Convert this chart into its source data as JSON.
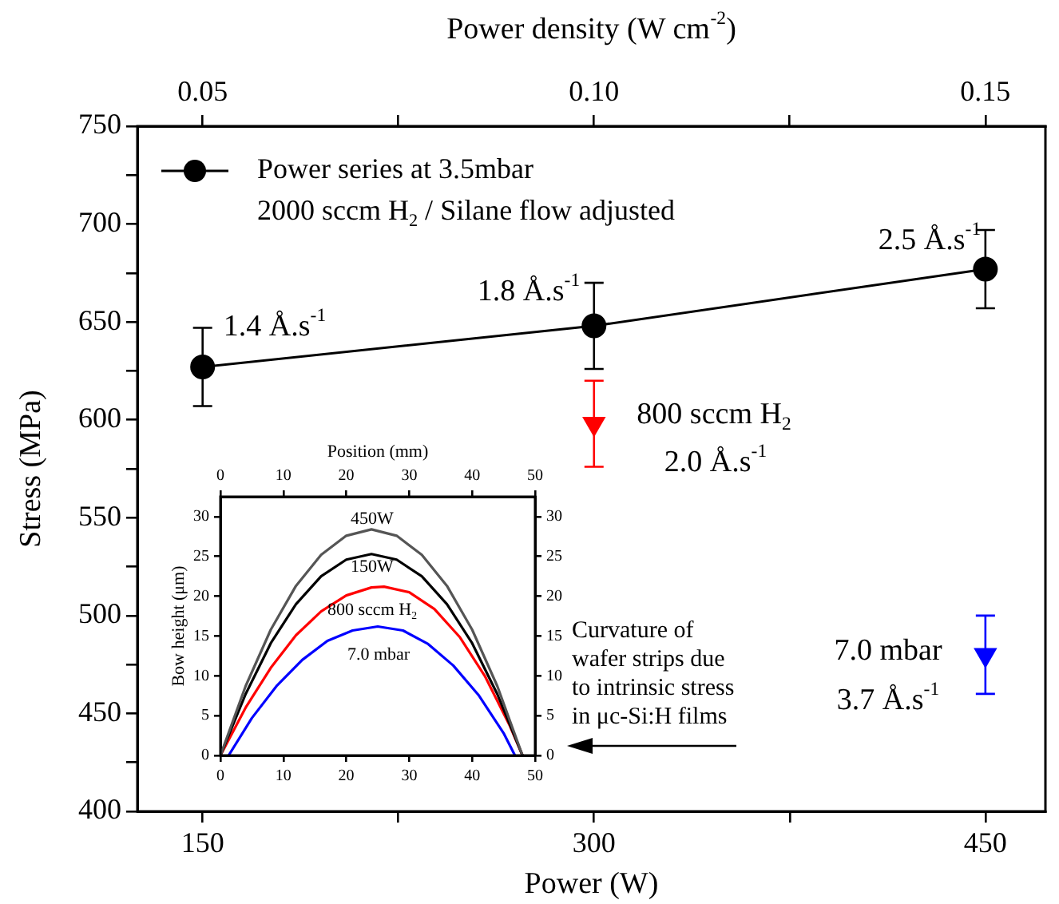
{
  "chart_data": [
    {
      "type": "line",
      "xlabel": "Power (W)",
      "ylabel": "Stress (MPa)",
      "x2label": "Power density (W cm$^{-2}$)",
      "xlim": [
        125,
        473
      ],
      "xticks": [
        150,
        {
          "value": 225,
          "label": null
        },
        300,
        {
          "value": 375,
          "label": null
        },
        450
      ],
      "x2lim": [
        0.04167,
        0.15767
      ],
      "x2ticks": [
        {
          "value": 0.05,
          "label": "0.05"
        },
        {
          "value": 0.075,
          "label": null
        },
        {
          "value": 0.1,
          "label": "0.10"
        },
        {
          "value": 0.125,
          "label": null
        },
        {
          "value": 0.15,
          "label": "0.15"
        }
      ],
      "ylim": [
        400,
        750
      ],
      "yticks": [
        400,
        {
          "value": 425,
          "label": null
        },
        450,
        {
          "value": 475,
          "label": null
        },
        500,
        {
          "value": 525,
          "label": null
        },
        550,
        {
          "value": 575,
          "label": null
        },
        600,
        {
          "value": 625,
          "label": null
        },
        650,
        {
          "value": 675,
          "label": null
        },
        700,
        {
          "value": 725,
          "label": null
        },
        750
      ],
      "grid": false,
      "legend": "top left",
      "series": [
        {
          "name": "Power series at 3.5mbar\n2000 sccm H$_{2}$ / Silane flow adjusted",
          "color": "#000000",
          "x": [
            150,
            300,
            450
          ],
          "values": [
            627,
            648,
            677
          ],
          "errors": [
            20,
            22,
            20
          ],
          "marker": "circle"
        },
        {
          "type": "scatter",
          "color": "#ff0000",
          "x": [
            300
          ],
          "values": [
            598
          ],
          "errors": [
            22
          ],
          "marker": "triangle"
        },
        {
          "type": "scatter",
          "color": "#0000ff",
          "x": [
            450
          ],
          "values": [
            480
          ],
          "errors": [
            20
          ],
          "marker": "triangle"
        }
      ],
      "annotations": [
        "1.4 Å.s$^{-1}$",
        "1.8 Å.s$^{-1}$",
        "2.5 Å.s$^{-1}$",
        "800 sccm H$_{2}$",
        "2.0 Å.s$^{-1}$",
        "7.0 mbar",
        "3.7 Å.s$^{-1}$",
        "Curvature of wafer strips due to intrinsic stress in μc-Si:H films"
      ]
    },
    {
      "type": "line",
      "x2label": "Position (mm)",
      "ylabel": "Bow height (μm)",
      "xlim": [
        0,
        50
      ],
      "xticks": [
        0,
        10,
        20,
        30,
        40,
        50
      ],
      "x2lim": [
        0,
        50
      ],
      "x2ticks": [
        0,
        10,
        20,
        30,
        40,
        50
      ],
      "ylim": [
        0,
        32.5
      ],
      "yticks": [
        0,
        5,
        10,
        15,
        20,
        25,
        30
      ],
      "y2lim": [
        0,
        32.5
      ],
      "y2ticks": [
        0,
        5,
        10,
        15,
        20,
        25,
        30
      ],
      "grid": false,
      "legend": false,
      "series": [
        {
          "color": "#555555",
          "x": [
            0,
            4,
            8,
            12,
            16,
            20,
            24,
            28,
            32,
            36,
            40,
            44,
            48
          ],
          "values": [
            0,
            8.7,
            15.8,
            21.3,
            25.2,
            27.6,
            28.4,
            27.6,
            25.2,
            21.3,
            15.8,
            8.7,
            0
          ]
        },
        {
          "color": "#000000",
          "x": [
            0,
            4,
            8,
            12,
            16,
            20,
            24,
            28,
            32,
            36,
            40,
            44,
            48
          ],
          "values": [
            0,
            7.7,
            14.1,
            19,
            22.5,
            24.6,
            25.3,
            24.6,
            22.5,
            19,
            14.1,
            7.7,
            0
          ]
        },
        {
          "color": "#ff0000",
          "x": [
            0,
            4,
            8,
            12,
            16,
            20,
            24,
            26,
            30,
            34,
            38,
            42,
            46,
            48
          ],
          "values": [
            0,
            6,
            11,
            15.1,
            18.1,
            20.1,
            21.1,
            21.2,
            20.5,
            18.4,
            14.9,
            10,
            3.7,
            0
          ]
        },
        {
          "color": "#0000ff",
          "x": [
            1.3,
            5,
            9,
            13,
            17,
            21,
            25,
            29,
            33,
            37,
            41,
            45,
            46.8
          ],
          "values": [
            0,
            4.7,
            8.8,
            12,
            14.4,
            15.7,
            16.2,
            15.7,
            14,
            11.3,
            7.6,
            2.8,
            0
          ]
        }
      ],
      "annotations": [
        "450W",
        "150W",
        "800 sccm H$_{2}$",
        "7.0 mbar"
      ]
    }
  ]
}
